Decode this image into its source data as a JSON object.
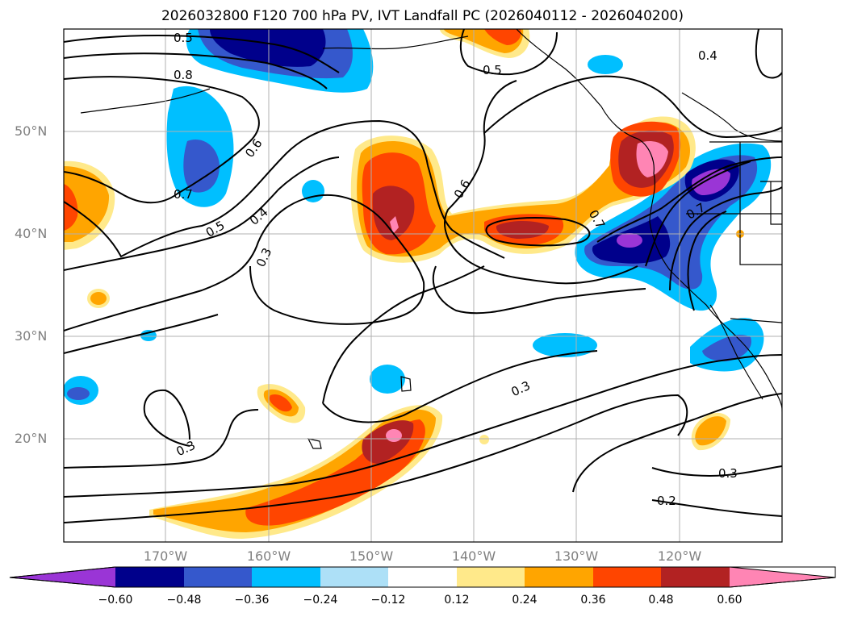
{
  "title": "2026032800 F120 700 hPa PV, IVT Landfall PC (2026040112 - 2026040200)",
  "lat_labels": [
    "50°N",
    "40°N",
    "30°N",
    "20°N"
  ],
  "lon_labels": [
    "170°W",
    "160°W",
    "150°W",
    "140°W",
    "130°W",
    "120°W"
  ],
  "colorbar": {
    "ticks": [
      "−0.60",
      "−0.48",
      "−0.36",
      "−0.24",
      "−0.12",
      "0.12",
      "0.24",
      "0.36",
      "0.48",
      "0.60"
    ],
    "colors": [
      "#9a35d6",
      "#00008b",
      "#3558cc",
      "#00bfff",
      "#ade0f7",
      "#ffffff",
      "#ffe98a",
      "#ffa500",
      "#ff4500",
      "#b22222",
      "#ff85b4"
    ]
  },
  "contour_labels": [
    "0.5",
    "0.8",
    "0.6",
    "0.7",
    "0.5",
    "0.4",
    "0.3",
    "0.5",
    "0.4",
    "0.6",
    "0.7",
    "0.3",
    "0.3",
    "0.3",
    "0.2",
    "0.7"
  ]
}
